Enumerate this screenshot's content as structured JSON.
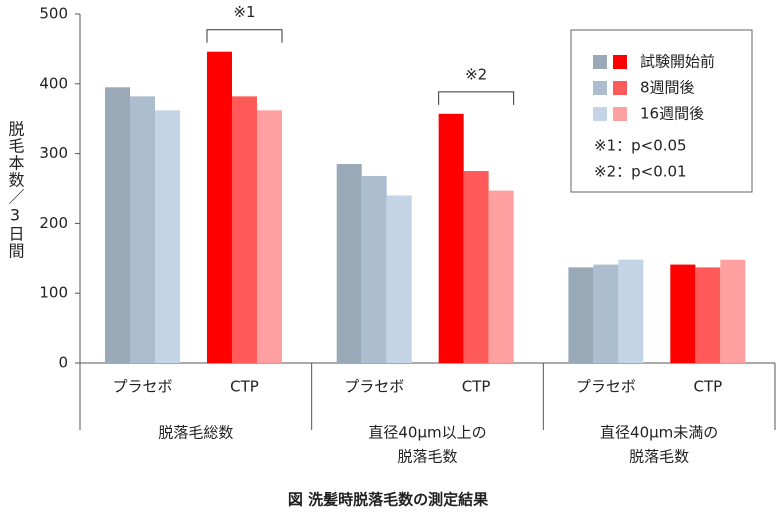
{
  "chart_data": {
    "type": "bar",
    "ylabel": "脱毛本数／3日間",
    "caption": "図 洗髪時脱落毛数の測定結果",
    "groups": [
      [
        "脱落毛総数"
      ],
      [
        "直径40μm以上の",
        "脱落毛数"
      ],
      [
        "直径40μm未満の",
        "脱落毛数"
      ]
    ],
    "categories": [
      "プラセボ",
      "CTP",
      "プラセボ",
      "CTP",
      "プラセボ",
      "CTP"
    ],
    "series": [
      {
        "name": "試験開始前",
        "colors": [
          "#9aa9b8",
          "#ff0000",
          "#9aa9b8",
          "#ff0000",
          "#9aa9b8",
          "#ff0000"
        ],
        "values": [
          395,
          446,
          285,
          357,
          137,
          141
        ]
      },
      {
        "name": "8週間後",
        "colors": [
          "#adbdd0",
          "#ff5a5a",
          "#adbdd0",
          "#ff5a5a",
          "#adbdd0",
          "#ff5a5a"
        ],
        "values": [
          382,
          382,
          268,
          275,
          141,
          137
        ]
      },
      {
        "name": "16週間後",
        "colors": [
          "#c4d4e6",
          "#ffa0a0",
          "#c4d4e6",
          "#ffa0a0",
          "#c4d4e6",
          "#ffa0a0"
        ],
        "values": [
          362,
          362,
          240,
          247,
          148,
          148
        ]
      }
    ],
    "annotations": [
      "※1",
      "※2"
    ],
    "notes": [
      "※1：p<0.05",
      "※2：p<0.01"
    ],
    "ylim": [
      0,
      500
    ],
    "yticks": [
      0,
      100,
      200,
      300,
      400,
      500
    ]
  }
}
